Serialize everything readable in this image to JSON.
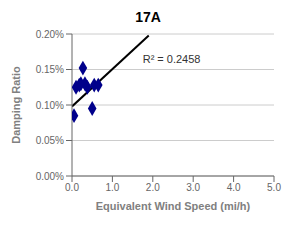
{
  "chart_data": {
    "type": "scatter",
    "title": "17A",
    "x_label": "Equivalent Wind Speed (mi/h)",
    "y_label": "Damping Ratio",
    "xlim": [
      0,
      5.0
    ],
    "ylim": [
      0,
      0.002
    ],
    "xticks": [
      {
        "value": 0.0,
        "label": "0.0"
      },
      {
        "value": 1.0,
        "label": "1.0"
      },
      {
        "value": 2.0,
        "label": "2.0"
      },
      {
        "value": 3.0,
        "label": "3.0"
      },
      {
        "value": 4.0,
        "label": "4.0"
      },
      {
        "value": 5.0,
        "label": "5.0"
      }
    ],
    "yticks": [
      {
        "value": 0.0,
        "label": "0.00%"
      },
      {
        "value": 0.0005,
        "label": "0.05%"
      },
      {
        "value": 0.001,
        "label": "0.10%"
      },
      {
        "value": 0.0015,
        "label": "0.15%"
      },
      {
        "value": 0.002,
        "label": "0.20%"
      }
    ],
    "grid": "y",
    "series": [
      {
        "type": "line",
        "color": "#000000",
        "x": [
          0.0,
          1.9
        ],
        "values": [
          0.00098,
          0.00198
        ]
      },
      {
        "type": "scatter",
        "color": "#00008B",
        "marker": "diamond",
        "x": [
          0.05,
          0.1,
          0.18,
          0.22,
          0.27,
          0.32,
          0.38,
          0.5,
          0.55,
          0.65
        ],
        "values": [
          0.00085,
          0.00125,
          0.00128,
          0.0013,
          0.00152,
          0.0013,
          0.00125,
          0.00095,
          0.00128,
          0.00128
        ]
      }
    ],
    "annotations": [
      {
        "text": "R² = 0.2458",
        "x": 1.75,
        "y": 0.00165
      }
    ]
  }
}
